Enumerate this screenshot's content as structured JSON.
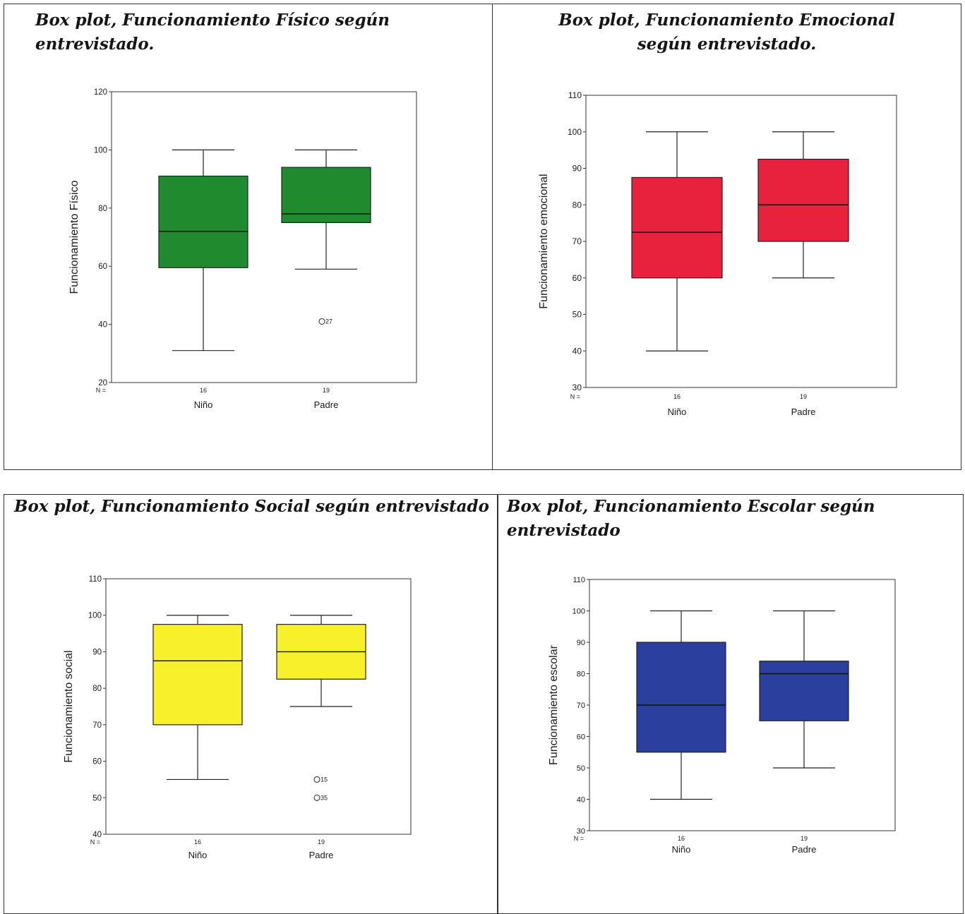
{
  "chart_data": [
    {
      "type": "box",
      "title": "Box plot, Funcionamiento Físico según entrevistado.",
      "ylabel": "Funcionamiento Físico",
      "ylim": [
        20,
        120
      ],
      "yticks": [
        "20",
        "40",
        "60",
        "80",
        "100",
        "120"
      ],
      "n_label": "N =",
      "color": "#1f8a2e",
      "groups": [
        {
          "category": "Niño",
          "n": "16",
          "min": 31,
          "q1": 59.5,
          "median": 72,
          "q3": 91,
          "max": 100,
          "outliers": []
        },
        {
          "category": "Padre",
          "n": "19",
          "min": 59,
          "q1": 75,
          "median": 78,
          "q3": 94,
          "max": 100,
          "outliers": [
            {
              "value": 41,
              "label": "27"
            }
          ]
        }
      ]
    },
    {
      "type": "box",
      "title": "Box plot, Funcionamiento Emocional según entrevistado.",
      "ylabel": "Funcionamiento emocional",
      "ylim": [
        30,
        110
      ],
      "yticks": [
        "30",
        "40",
        "50",
        "60",
        "70",
        "80",
        "90",
        "100",
        "110"
      ],
      "n_label": "N =",
      "color": "#e8223d",
      "groups": [
        {
          "category": "Niño",
          "n": "16",
          "min": 40,
          "q1": 60,
          "median": 72.5,
          "q3": 87.5,
          "max": 100,
          "outliers": []
        },
        {
          "category": "Padre",
          "n": "19",
          "min": 60,
          "q1": 70,
          "median": 80,
          "q3": 92.5,
          "max": 100,
          "outliers": []
        }
      ]
    },
    {
      "type": "box",
      "title": "Box plot, Funcionamiento Social según entrevistado",
      "ylabel": "Funcionamiento social",
      "ylim": [
        40,
        110
      ],
      "yticks": [
        "40",
        "50",
        "60",
        "70",
        "80",
        "90",
        "100",
        "110"
      ],
      "n_label": "N =",
      "color": "#f7f02b",
      "groups": [
        {
          "category": "Niño",
          "n": "16",
          "min": 55,
          "q1": 70,
          "median": 87.5,
          "q3": 97.5,
          "max": 100,
          "outliers": []
        },
        {
          "category": "Padre",
          "n": "19",
          "min": 75,
          "q1": 82.5,
          "median": 90,
          "q3": 97.5,
          "max": 100,
          "outliers": [
            {
              "value": 55,
              "label": "15"
            },
            {
              "value": 50,
              "label": "35"
            }
          ]
        }
      ]
    },
    {
      "type": "box",
      "title": "Box plot, Funcionamiento Escolar según entrevistado",
      "ylabel": "Funcionamiento escolar",
      "ylim": [
        30,
        110
      ],
      "yticks": [
        "30",
        "40",
        "50",
        "60",
        "70",
        "80",
        "90",
        "100",
        "110"
      ],
      "n_label": "N =",
      "color": "#2a3f9e",
      "groups": [
        {
          "category": "Niño",
          "n": "16",
          "min": 40,
          "q1": 55,
          "median": 70,
          "q3": 90,
          "max": 100,
          "outliers": []
        },
        {
          "category": "Padre",
          "n": "19",
          "min": 50,
          "q1": 65,
          "median": 80,
          "q3": 84,
          "max": 100,
          "outliers": []
        }
      ]
    }
  ]
}
